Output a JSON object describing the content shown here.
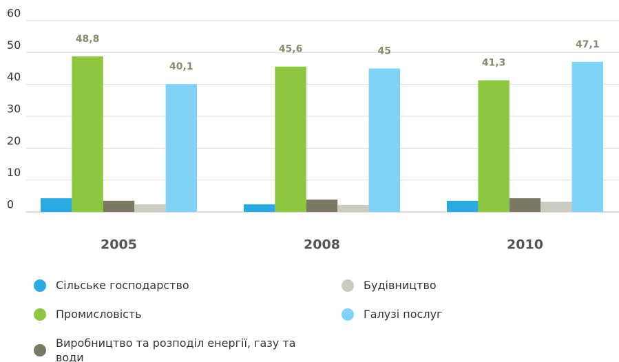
{
  "chart_data": {
    "type": "bar",
    "categories": [
      "2005",
      "2008",
      "2010"
    ],
    "series": [
      {
        "name": "Сільське господарство",
        "color": "#29abe2",
        "values": [
          4.3,
          2.4,
          3.5
        ]
      },
      {
        "name": "Промисловість",
        "color": "#8dc63f",
        "values": [
          48.8,
          45.6,
          41.3
        ],
        "value_labels": [
          "48,8",
          "45,6",
          "41,3"
        ]
      },
      {
        "name": "Виробництво та розподіл енергії, газу та води",
        "color": "#7b7863",
        "values": [
          3.5,
          3.9,
          4.3
        ]
      },
      {
        "name": "Будівництво",
        "color": "#cdcac1",
        "values": [
          2.4,
          2.2,
          3.2
        ]
      },
      {
        "name": "Галузі послуг",
        "color": "#80d2f6",
        "values": [
          40.1,
          45,
          47.1
        ],
        "value_labels": [
          "40,1",
          "45",
          "47,1"
        ]
      }
    ],
    "ylim": [
      0,
      60
    ],
    "yticks": [
      0,
      10,
      20,
      30,
      40,
      50,
      60
    ],
    "grid": true
  }
}
